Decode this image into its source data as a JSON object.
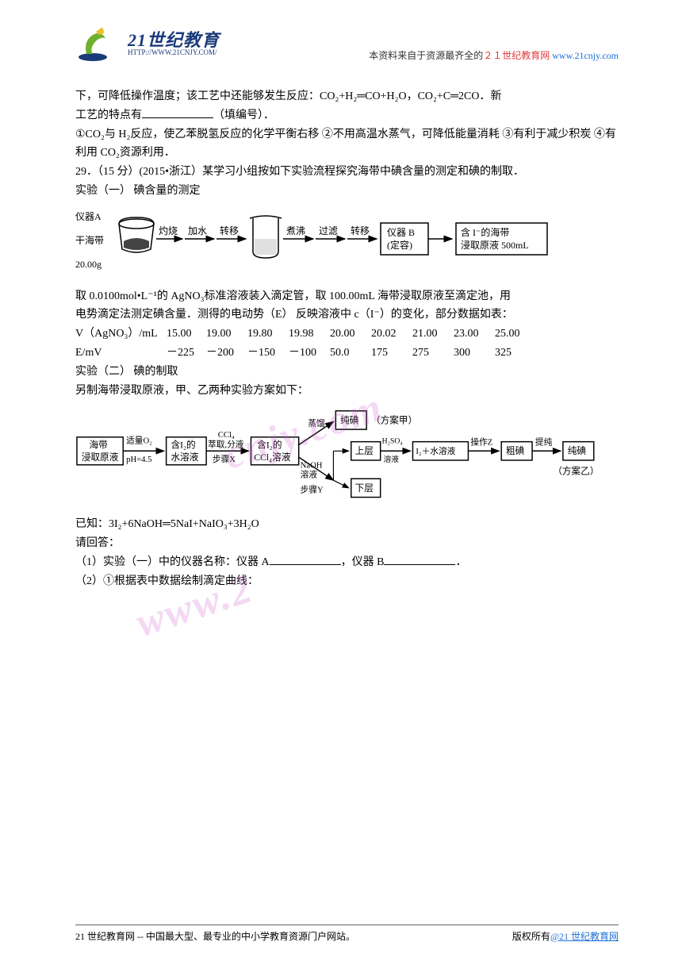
{
  "header": {
    "logo_cn": "21世纪教育",
    "logo_en": "HTTP://WWW.21CNJY.COM/",
    "tagline_pre": "本资料来自于资源最齐全的",
    "tagline_red": "２１世纪教育网 ",
    "tagline_link": "www.21cnjy.com"
  },
  "q28": {
    "line1": "下，可降低操作温度；该工艺中还能够发生反应：CO₂+H₂═CO+H₂O，CO₂+C═2CO．新",
    "line2_pre": "工艺的特点有",
    "line2_post": "（填编号）．",
    "opt1": "①CO₂与 H₂反应，使乙苯脱氢反应的化学平衡右移",
    "opt2": "②不用高温水蒸气，可降低能量消耗",
    "opt3": "③有利于减少积炭",
    "opt4": "④有利用 CO₂资源利用．"
  },
  "q29": {
    "title": "29．（15 分）(2015•浙江）某学习小组按如下实验流程探究海带中碘含量的测定和碘的制取．",
    "exp1_title": "实验（一） 碘含量的测定",
    "flow1": {
      "nodes": {
        "instrA": "仪器A",
        "kelp": "干海带",
        "mass": "20.00g",
        "burn": "灼烧",
        "addwater": "加水",
        "transfer1": "转移",
        "boil": "煮沸",
        "filter": "过滤",
        "transfer2": "转移",
        "instrB_l1": "仪器 B",
        "instrB_l2": "(定容)",
        "out_l1": "含 I⁻的海带",
        "out_l2": "浸取原液 500mL"
      }
    },
    "desc1": "取 0.0100mol•L⁻¹的 AgNO₃标准溶液装入滴定管，取 100.00mL 海带浸取原液至滴定池，用",
    "desc2": "电势滴定法测定碘含量．测得的电动势（E） 反映溶液中 c（I⁻）的变化，部分数据如表：",
    "table": {
      "row1_label": "V（AgNO₃）/mL",
      "row1_vals": [
        "15.00",
        "19.00",
        "19.80",
        "19.98",
        "20.00",
        "20.02",
        "21.00",
        "23.00",
        "25.00"
      ],
      "row2_label": "E/mV",
      "row2_vals": [
        "－225",
        "－200",
        "－150",
        "－100",
        "50.0",
        "175",
        "275",
        "300",
        "325"
      ]
    },
    "exp2_title": "实验（二） 碘的制取",
    "exp2_sub": "另制海带浸取原液，甲、乙两种实验方案如下：",
    "flow2": {
      "nodes": {
        "start_l1": "海带",
        "start_l2": "浸取原液",
        "o2_l1": "适量O₂",
        "o2_l2": "pH=4.5",
        "i2sol_l1": "含I₂的",
        "i2sol_l2": "水溶液",
        "ccl4_l1": "CCl₄",
        "ccl4_l2": "萃取,分液",
        "ccl4_l3": "步骤X",
        "ccl4box_l1": "含I₂的",
        "ccl4box_l2": "CCl₄溶液",
        "distill": "蒸馏",
        "pure1": "纯碘",
        "planA": "（方案甲）",
        "naoh_l1": "NaOH",
        "naoh_l2": "溶液",
        "naoh_l3": "步骤Y",
        "upper": "上层",
        "lower": "下层",
        "h2so4_l1": "H₂SO₄",
        "h2so4_l2": "溶液",
        "i2water": "I₂＋水溶液",
        "opz": "操作Z",
        "crude": "粗碘",
        "purify": "提纯",
        "pure2": "纯碘",
        "planB": "（方案乙）"
      }
    },
    "known": "已知：3I₂+6NaOH═5NaI+NaIO₃+3H₂O",
    "please": "请回答：",
    "q1_pre": "（1）实验（一）中的仪器名称：仪器 A",
    "q1_mid": "，仪器 B",
    "q1_post": "．",
    "q2": "（2）①根据表中数据绘制滴定曲线："
  },
  "footer": {
    "left": "21 世纪教育网 -- 中国最大型、最专业的中小学教育资源门户网站。",
    "right_pre": "版权所有",
    "right_link": "@21 世纪教育网"
  },
  "colors": {
    "text": "#000000",
    "red": "#e4393c",
    "link": "#1e6fd8",
    "logo": "#1a3a7a",
    "logo_green": "#6fb12c",
    "logo_yellow": "#f2c029",
    "watermark": "rgba(200,80,200,0.22)"
  }
}
